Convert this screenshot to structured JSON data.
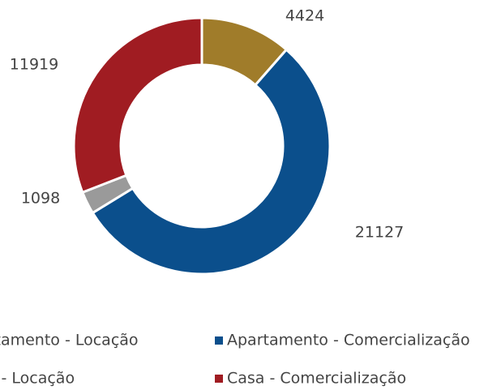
{
  "chart_data": {
    "type": "donut",
    "categories": [
      "Apartamento - Locação",
      "Apartamento - Comercialização",
      "Casa - Locação",
      "Casa - Comercialização"
    ],
    "values": [
      4424,
      21127,
      1098,
      11919
    ],
    "colors": [
      "#a07c2a",
      "#0b4f8c",
      "#9a9a9a",
      "#a01c22"
    ],
    "legend": "bottom"
  }
}
